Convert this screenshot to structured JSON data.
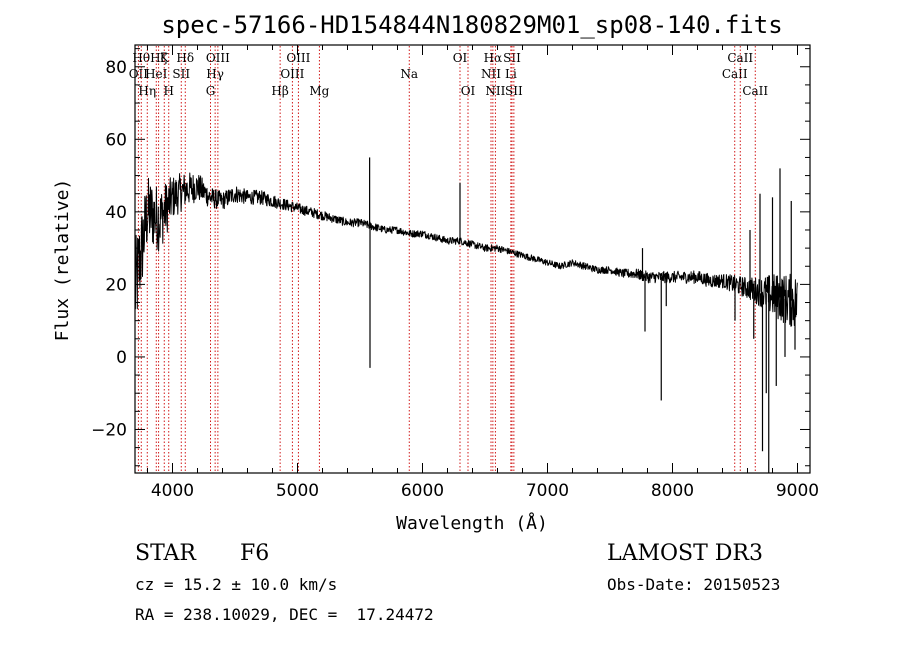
{
  "chart_data": {
    "type": "line",
    "title": "spec-57166-HD154844N180829M01_sp08-140.fits",
    "xlabel": "Wavelength (Å)",
    "ylabel": "Flux (relative)",
    "xlim": [
      3700,
      9100
    ],
    "ylim": [
      -32,
      86
    ],
    "xticks": [
      4000,
      5000,
      6000,
      7000,
      8000,
      9000
    ],
    "yticks": [
      -20,
      0,
      20,
      40,
      60,
      80
    ],
    "grid": false,
    "spectrum_anchors": {
      "x": [
        3700,
        3800,
        3900,
        4000,
        4100,
        4200,
        4300,
        4400,
        4500,
        4600,
        4700,
        4800,
        4900,
        5000,
        5100,
        5200,
        5300,
        5400,
        5500,
        5600,
        5700,
        5800,
        5900,
        6000,
        6100,
        6200,
        6300,
        6400,
        6500,
        6600,
        6700,
        6800,
        6900,
        7000,
        7100,
        7200,
        7300,
        7400,
        7500,
        7600,
        7700,
        7800,
        7900,
        8000,
        8100,
        8200,
        8300,
        8400,
        8500,
        8600,
        8700,
        8800,
        8900,
        9000
      ],
      "y": [
        18,
        40,
        38,
        44,
        46,
        47,
        44,
        43,
        45,
        44,
        44,
        43,
        42,
        41,
        40,
        39,
        38,
        37,
        37,
        36,
        35,
        35,
        34,
        34,
        33,
        32,
        32,
        31,
        30,
        30,
        29,
        28,
        27,
        26,
        25,
        26,
        25,
        24,
        24,
        23,
        23,
        22,
        22,
        22,
        22,
        22,
        21,
        21,
        20,
        19,
        18,
        17,
        16,
        15
      ],
      "noise": [
        14,
        10,
        9,
        6,
        5,
        4,
        3,
        2.5,
        2.5,
        2,
        2,
        1.8,
        1.6,
        1.5,
        1.4,
        1.3,
        1.2,
        1.2,
        1.1,
        1.1,
        1.0,
        1.0,
        1.0,
        1.0,
        1.0,
        1.0,
        1.0,
        1.0,
        1.0,
        1.0,
        0.9,
        0.9,
        0.9,
        0.9,
        0.9,
        0.9,
        1.0,
        1.0,
        1.0,
        1.2,
        1.4,
        1.6,
        1.6,
        1.6,
        1.7,
        1.8,
        1.9,
        2.0,
        2.5,
        3.0,
        4.0,
        6.0,
        7.0,
        8.0
      ]
    },
    "spikes": [
      {
        "x": 5577,
        "y": 55
      },
      {
        "x": 5580,
        "y": -3
      },
      {
        "x": 6300,
        "y": 48
      },
      {
        "x": 7760,
        "y": 30
      },
      {
        "x": 7780,
        "y": 7
      },
      {
        "x": 7910,
        "y": -12
      },
      {
        "x": 7950,
        "y": 14
      },
      {
        "x": 8500,
        "y": 10
      },
      {
        "x": 8620,
        "y": 35
      },
      {
        "x": 8650,
        "y": 5
      },
      {
        "x": 8700,
        "y": 45
      },
      {
        "x": 8720,
        "y": -26
      },
      {
        "x": 8750,
        "y": -10
      },
      {
        "x": 8770,
        "y": -32
      },
      {
        "x": 8800,
        "y": 44
      },
      {
        "x": 8830,
        "y": -8
      },
      {
        "x": 8860,
        "y": 52
      },
      {
        "x": 8900,
        "y": 0
      },
      {
        "x": 8950,
        "y": 43
      },
      {
        "x": 8980,
        "y": 2
      }
    ],
    "line_markers": [
      {
        "x": 3727,
        "label": "OII",
        "row": 2
      },
      {
        "x": 3750,
        "label": "Hθ",
        "row": 1
      },
      {
        "x": 3798,
        "label": "Hη",
        "row": 3
      },
      {
        "x": 3870,
        "label": "HeI",
        "row": 2
      },
      {
        "x": 3889,
        "label": "Hζ",
        "row": 1
      },
      {
        "x": 3934,
        "label": "K",
        "row": 1
      },
      {
        "x": 3970,
        "label": "H",
        "row": 3
      },
      {
        "x": 4070,
        "label": "SII",
        "row": 2
      },
      {
        "x": 4102,
        "label": "Hδ",
        "row": 1
      },
      {
        "x": 4304,
        "label": "G",
        "row": 3
      },
      {
        "x": 4341,
        "label": "Hγ",
        "row": 2
      },
      {
        "x": 4363,
        "label": "OIII",
        "row": 1
      },
      {
        "x": 4861,
        "label": "Hβ",
        "row": 3
      },
      {
        "x": 4959,
        "label": "OIII",
        "row": 2
      },
      {
        "x": 5007,
        "label": "OIII",
        "row": 1
      },
      {
        "x": 5175,
        "label": "Mg",
        "row": 3
      },
      {
        "x": 5894,
        "label": "Na",
        "row": 2
      },
      {
        "x": 6300,
        "label": "OI",
        "row": 1
      },
      {
        "x": 6364,
        "label": "OI",
        "row": 3
      },
      {
        "x": 6548,
        "label": "NII",
        "row": 2
      },
      {
        "x": 6563,
        "label": "Hα",
        "row": 1
      },
      {
        "x": 6583,
        "label": "NII",
        "row": 3
      },
      {
        "x": 6707,
        "label": "Li",
        "row": 2
      },
      {
        "x": 6716,
        "label": "SII",
        "row": 1
      },
      {
        "x": 6731,
        "label": "SII",
        "row": 3
      },
      {
        "x": 8498,
        "label": "CaII",
        "row": 2
      },
      {
        "x": 8542,
        "label": "CaII",
        "row": 1
      },
      {
        "x": 8662,
        "label": "CaII",
        "row": 3
      }
    ]
  },
  "info": {
    "class_label": "STAR",
    "subclass_label": "F6",
    "survey_label": "LAMOST DR3",
    "cz_text": "cz = 15.2 ± 10.0 km/s",
    "obs_date_text": "Obs-Date: 20150523",
    "radec_text": "RA = 238.10029, DEC =  17.24472"
  },
  "colors": {
    "spectrum": "#000000",
    "marker_lines": "#cc0000",
    "axes": "#000000"
  }
}
